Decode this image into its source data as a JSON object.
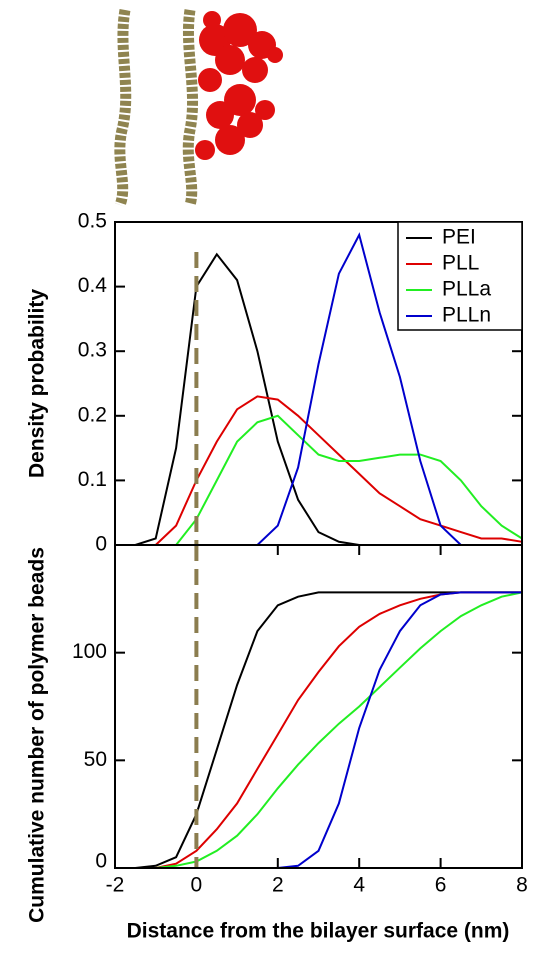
{
  "chart_data": [
    {
      "type": "line",
      "ylabel": "Density probability",
      "x": [
        -2,
        -1.5,
        -1,
        -0.5,
        0,
        0.5,
        1,
        1.5,
        2,
        2.5,
        3,
        3.5,
        4,
        4.5,
        5,
        5.5,
        6,
        6.5,
        7,
        7.5,
        8
      ],
      "xlim": [
        -2,
        8
      ],
      "ylim": [
        0,
        0.5
      ],
      "yticks": [
        0,
        0.1,
        0.2,
        0.3,
        0.4,
        0.5
      ],
      "vline": 0,
      "vline_color": "#8b7d4f",
      "legend": "upper right",
      "series": [
        {
          "name": "PEI",
          "color": "#000000",
          "values": [
            0,
            0,
            0.01,
            0.15,
            0.4,
            0.45,
            0.41,
            0.3,
            0.16,
            0.07,
            0.02,
            0.005,
            0,
            0,
            0,
            0,
            0,
            0,
            0,
            0,
            0
          ]
        },
        {
          "name": "PLL",
          "color": "#dd0000",
          "values": [
            0,
            0,
            0,
            0.03,
            0.1,
            0.16,
            0.21,
            0.23,
            0.225,
            0.2,
            0.17,
            0.14,
            0.11,
            0.08,
            0.06,
            0.04,
            0.03,
            0.02,
            0.01,
            0.01,
            0.005
          ]
        },
        {
          "name": "PLLa",
          "color": "#22ee22",
          "values": [
            0,
            0,
            0,
            0,
            0.04,
            0.1,
            0.16,
            0.19,
            0.2,
            0.17,
            0.14,
            0.13,
            0.13,
            0.135,
            0.14,
            0.14,
            0.13,
            0.1,
            0.06,
            0.03,
            0.01
          ]
        },
        {
          "name": "PLLn",
          "color": "#0000cc",
          "values": [
            0,
            0,
            0,
            0,
            0,
            0,
            0,
            0,
            0.03,
            0.12,
            0.28,
            0.42,
            0.48,
            0.36,
            0.26,
            0.13,
            0.03,
            0,
            0,
            0,
            0
          ]
        }
      ]
    },
    {
      "type": "line",
      "ylabel": "Cumulative number of polymer beads",
      "xlabel": "Distance from the bilayer surface (nm)",
      "x": [
        -2,
        -1.5,
        -1,
        -0.5,
        0,
        0.5,
        1,
        1.5,
        2,
        2.5,
        3,
        3.5,
        4,
        4.5,
        5,
        5.5,
        6,
        6.5,
        7,
        7.5,
        8
      ],
      "xlim": [
        -2,
        8
      ],
      "ylim": [
        0,
        150
      ],
      "xticks": [
        -2,
        0,
        2,
        4,
        6,
        8
      ],
      "yticks": [
        0,
        50,
        100
      ],
      "vline": 0,
      "vline_color": "#8b7d4f",
      "series": [
        {
          "color": "#000000",
          "values": [
            0,
            0,
            1,
            5,
            25,
            55,
            85,
            110,
            122,
            126,
            128,
            128,
            128,
            128,
            128,
            128,
            128,
            128,
            128,
            128,
            128
          ]
        },
        {
          "color": "#dd0000",
          "values": [
            0,
            0,
            0,
            2,
            8,
            18,
            30,
            46,
            62,
            78,
            91,
            103,
            112,
            118,
            122,
            125,
            127,
            128,
            128,
            128,
            128
          ]
        },
        {
          "color": "#22ee22",
          "values": [
            0,
            0,
            0,
            1,
            3,
            8,
            15,
            25,
            37,
            48,
            58,
            67,
            75,
            84,
            93,
            102,
            110,
            117,
            122,
            126,
            128
          ]
        },
        {
          "color": "#0000cc",
          "values": [
            0,
            0,
            0,
            0,
            0,
            0,
            0,
            0,
            0,
            1,
            8,
            30,
            65,
            92,
            110,
            122,
            127,
            128,
            128,
            128,
            128
          ]
        }
      ]
    }
  ]
}
